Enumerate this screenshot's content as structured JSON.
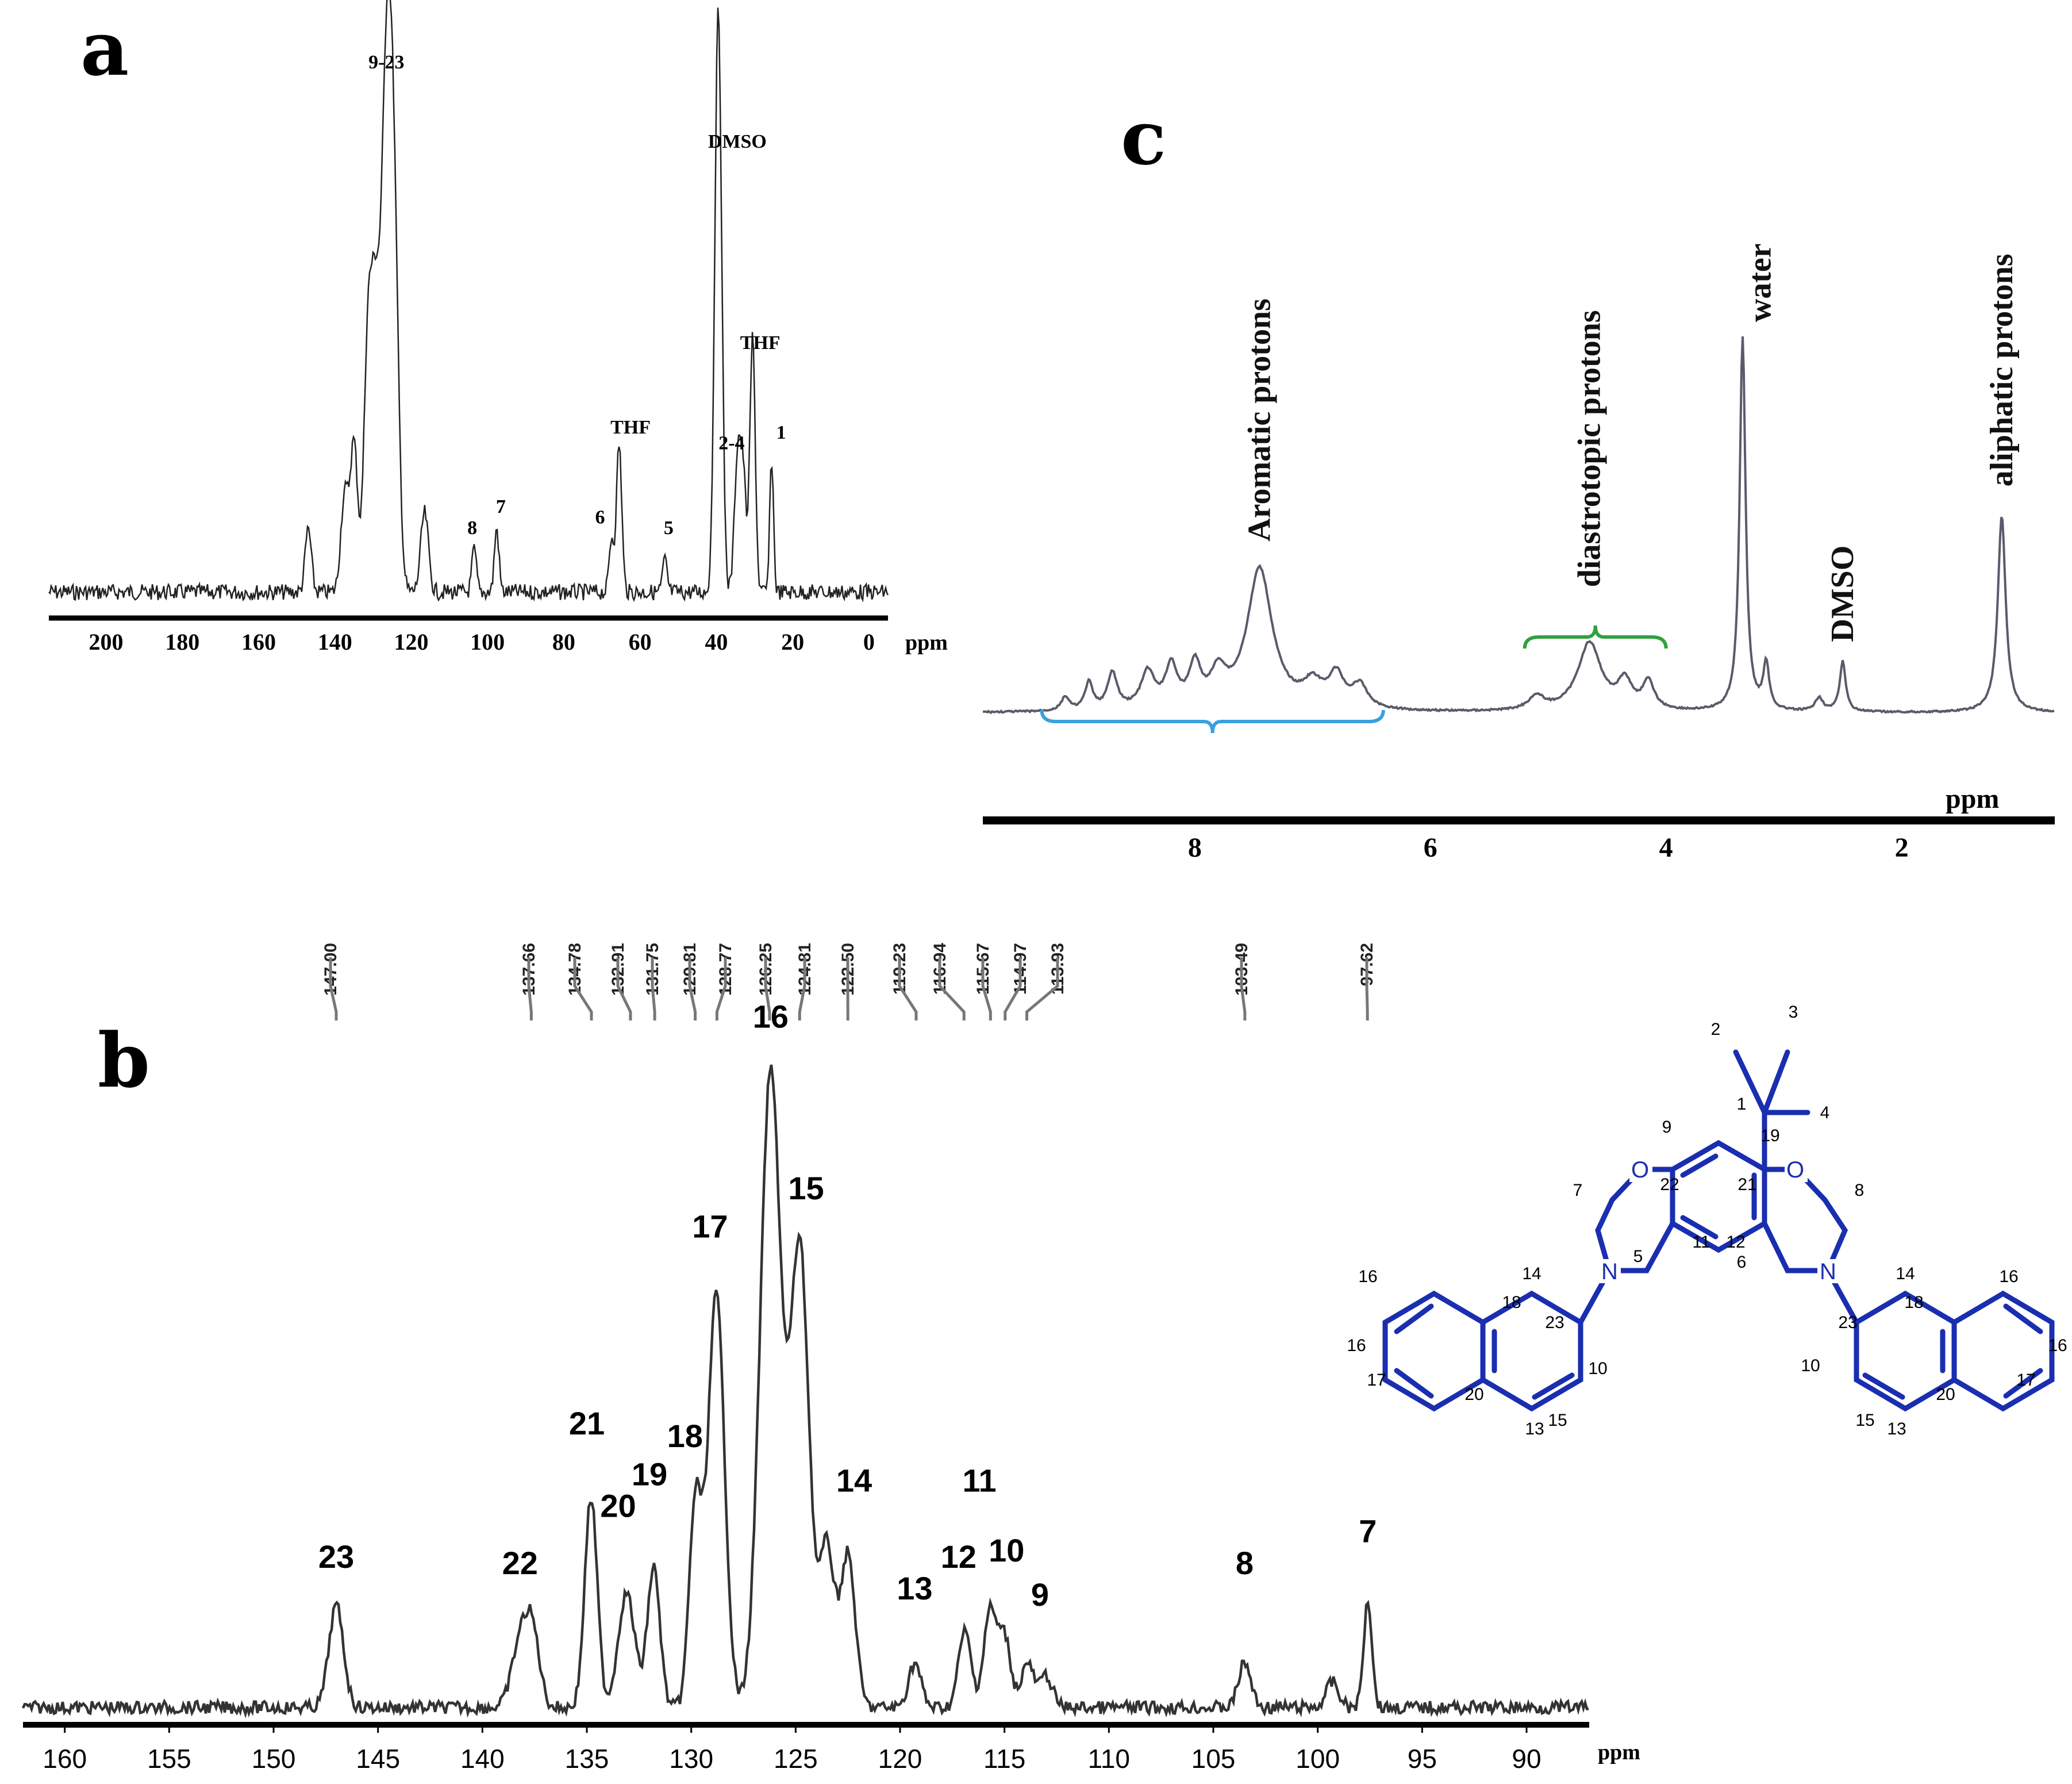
{
  "panels": {
    "a": "a",
    "b": "b",
    "c": "c"
  },
  "chart_data": [
    {
      "id": "a",
      "type": "line",
      "title": "",
      "xlabel": "ppm",
      "ylabel": "",
      "xlim": [
        215,
        -5
      ],
      "x_reversed": true,
      "xticks": [
        200,
        180,
        160,
        140,
        120,
        100,
        80,
        60,
        40,
        20,
        0
      ],
      "grid": false,
      "peaks": [
        {
          "x": 126.5,
          "h": 0.93,
          "w": 1.3
        },
        {
          "x": 124.5,
          "h": 0.62,
          "w": 1.2
        },
        {
          "x": 129.5,
          "h": 0.52,
          "w": 1.2
        },
        {
          "x": 131.5,
          "h": 0.4,
          "w": 1.0
        },
        {
          "x": 135.0,
          "h": 0.28,
          "w": 1.0
        },
        {
          "x": 137.5,
          "h": 0.18,
          "w": 1.0
        },
        {
          "x": 147.0,
          "h": 0.12,
          "w": 0.8
        },
        {
          "x": 116.5,
          "h": 0.15,
          "w": 1.0
        },
        {
          "x": 103.5,
          "h": 0.08,
          "w": 0.6
        },
        {
          "x": 97.6,
          "h": 0.12,
          "w": 0.6
        },
        {
          "x": 67.5,
          "h": 0.1,
          "w": 0.6
        },
        {
          "x": 65.5,
          "h": 0.28,
          "w": 0.7
        },
        {
          "x": 53.5,
          "h": 0.06,
          "w": 0.6
        },
        {
          "x": 39.5,
          "h": 1.1,
          "w": 0.9
        },
        {
          "x": 34.5,
          "h": 0.24,
          "w": 0.8
        },
        {
          "x": 33.0,
          "h": 0.22,
          "w": 0.8
        },
        {
          "x": 30.5,
          "h": 0.48,
          "w": 0.7
        },
        {
          "x": 25.5,
          "h": 0.25,
          "w": 0.5
        }
      ],
      "labels": [
        {
          "text": "9-23",
          "x": 126.5,
          "y": 0.99
        },
        {
          "text": "DMSO",
          "x": 34.5,
          "y": 0.84
        },
        {
          "text": "THF",
          "x": 28.5,
          "y": 0.46
        },
        {
          "text": "THF",
          "x": 62.5,
          "y": 0.3
        },
        {
          "text": "2-4",
          "x": 36.0,
          "y": 0.27
        },
        {
          "text": "1",
          "x": 23.0,
          "y": 0.29
        },
        {
          "text": "8",
          "x": 104.0,
          "y": 0.11
        },
        {
          "text": "7",
          "x": 96.5,
          "y": 0.15
        },
        {
          "text": "6",
          "x": 70.5,
          "y": 0.13
        },
        {
          "text": "5",
          "x": 52.5,
          "y": 0.11
        }
      ]
    },
    {
      "id": "b",
      "type": "line",
      "title": "",
      "xlabel": "ppm",
      "ylabel": "",
      "xlim": [
        162,
        87
      ],
      "x_reversed": true,
      "xticks": [
        160,
        155,
        150,
        145,
        140,
        135,
        130,
        125,
        120,
        115,
        110,
        105,
        100,
        95,
        90
      ],
      "grid": false,
      "shifts": [
        "147.00",
        "137.66",
        "134.78",
        "132.91",
        "131.75",
        "129.81",
        "128.77",
        "126.25",
        "124.81",
        "122.50",
        "119.23",
        "116.94",
        "115.67",
        "114.97",
        "113.93",
        "103.49",
        "97.62"
      ],
      "peaks": [
        {
          "x": 147.0,
          "h": 0.16,
          "w": 0.35
        },
        {
          "x": 138.2,
          "h": 0.1,
          "w": 0.4
        },
        {
          "x": 137.6,
          "h": 0.11,
          "w": 0.35
        },
        {
          "x": 134.8,
          "h": 0.33,
          "w": 0.3
        },
        {
          "x": 133.1,
          "h": 0.18,
          "w": 0.4
        },
        {
          "x": 131.8,
          "h": 0.22,
          "w": 0.3
        },
        {
          "x": 129.8,
          "h": 0.32,
          "w": 0.3
        },
        {
          "x": 128.8,
          "h": 0.65,
          "w": 0.4
        },
        {
          "x": 126.2,
          "h": 1.0,
          "w": 0.5
        },
        {
          "x": 124.8,
          "h": 0.72,
          "w": 0.45
        },
        {
          "x": 123.5,
          "h": 0.25,
          "w": 0.35
        },
        {
          "x": 122.5,
          "h": 0.24,
          "w": 0.35
        },
        {
          "x": 119.3,
          "h": 0.07,
          "w": 0.3
        },
        {
          "x": 116.9,
          "h": 0.12,
          "w": 0.3
        },
        {
          "x": 115.7,
          "h": 0.15,
          "w": 0.3
        },
        {
          "x": 115.0,
          "h": 0.11,
          "w": 0.3
        },
        {
          "x": 113.9,
          "h": 0.07,
          "w": 0.3
        },
        {
          "x": 113.0,
          "h": 0.05,
          "w": 0.3
        },
        {
          "x": 103.5,
          "h": 0.07,
          "w": 0.3
        },
        {
          "x": 99.3,
          "h": 0.04,
          "w": 0.3
        },
        {
          "x": 97.6,
          "h": 0.17,
          "w": 0.2
        }
      ],
      "labels": [
        {
          "text": "23",
          "x": 147.0,
          "y": 0.22
        },
        {
          "text": "22",
          "x": 138.2,
          "y": 0.21
        },
        {
          "text": "21",
          "x": 135.0,
          "y": 0.43
        },
        {
          "text": "20",
          "x": 133.5,
          "y": 0.3
        },
        {
          "text": "19",
          "x": 132.0,
          "y": 0.35
        },
        {
          "text": "18",
          "x": 130.3,
          "y": 0.41
        },
        {
          "text": "17",
          "x": 129.1,
          "y": 0.74
        },
        {
          "text": "16",
          "x": 126.2,
          "y": 1.07
        },
        {
          "text": "15",
          "x": 124.5,
          "y": 0.8
        },
        {
          "text": "14",
          "x": 122.2,
          "y": 0.34
        },
        {
          "text": "13",
          "x": 119.3,
          "y": 0.17
        },
        {
          "text": "12",
          "x": 117.2,
          "y": 0.22
        },
        {
          "text": "11",
          "x": 116.2,
          "y": 0.34
        },
        {
          "text": "10",
          "x": 114.9,
          "y": 0.23
        },
        {
          "text": "9",
          "x": 113.3,
          "y": 0.16
        },
        {
          "text": "8",
          "x": 103.5,
          "y": 0.21
        },
        {
          "text": "7",
          "x": 97.6,
          "y": 0.26
        }
      ]
    },
    {
      "id": "c",
      "type": "line",
      "title": "",
      "xlabel": "ppm",
      "ylabel": "",
      "xlim": [
        9.8,
        0.7
      ],
      "x_reversed": true,
      "xticks": [
        8,
        6,
        4,
        2
      ],
      "grid": false,
      "peaks": [
        {
          "x": 9.1,
          "h": 0.03,
          "w": 0.04
        },
        {
          "x": 8.9,
          "h": 0.06,
          "w": 0.04
        },
        {
          "x": 8.7,
          "h": 0.08,
          "w": 0.05
        },
        {
          "x": 8.4,
          "h": 0.08,
          "w": 0.07
        },
        {
          "x": 8.2,
          "h": 0.09,
          "w": 0.06
        },
        {
          "x": 8.0,
          "h": 0.09,
          "w": 0.06
        },
        {
          "x": 7.8,
          "h": 0.07,
          "w": 0.08
        },
        {
          "x": 7.45,
          "h": 0.31,
          "w": 0.13
        },
        {
          "x": 7.0,
          "h": 0.05,
          "w": 0.1
        },
        {
          "x": 6.8,
          "h": 0.07,
          "w": 0.08
        },
        {
          "x": 6.6,
          "h": 0.05,
          "w": 0.08
        },
        {
          "x": 5.1,
          "h": 0.03,
          "w": 0.08
        },
        {
          "x": 4.65,
          "h": 0.15,
          "w": 0.12
        },
        {
          "x": 4.35,
          "h": 0.06,
          "w": 0.07
        },
        {
          "x": 4.15,
          "h": 0.06,
          "w": 0.06
        },
        {
          "x": 3.35,
          "h": 0.82,
          "w": 0.03
        },
        {
          "x": 3.15,
          "h": 0.1,
          "w": 0.03
        },
        {
          "x": 2.7,
          "h": 0.03,
          "w": 0.04
        },
        {
          "x": 2.5,
          "h": 0.11,
          "w": 0.03
        },
        {
          "x": 1.15,
          "h": 0.43,
          "w": 0.04
        }
      ],
      "labels": [
        {
          "text": "Aromatic protons",
          "x": 7.45,
          "y": 0.35
        },
        {
          "text": "diastrotopic protons",
          "x": 4.65,
          "y": 0.25
        },
        {
          "text": "water",
          "x": 3.2,
          "y": 0.83
        },
        {
          "text": "DMSO",
          "x": 2.5,
          "y": 0.13
        },
        {
          "text": "aliphatic protons",
          "x": 1.15,
          "y": 0.47
        }
      ],
      "braces": [
        {
          "from": 9.3,
          "to": 6.4,
          "color": "#3aa0e0"
        },
        {
          "from": 5.2,
          "to": 4.0,
          "color": "#30a040"
        }
      ]
    }
  ],
  "molecule": {
    "carbon_labels": [
      "1",
      "2",
      "3",
      "4",
      "5",
      "6",
      "7",
      "8",
      "9",
      "10",
      "10",
      "11",
      "12",
      "13",
      "13",
      "14",
      "14",
      "15",
      "15",
      "16",
      "16",
      "16",
      "16",
      "17",
      "17",
      "18",
      "18",
      "19",
      "20",
      "20",
      "21",
      "22",
      "23",
      "23"
    ],
    "atoms": {
      "O": "O",
      "N": "N"
    },
    "bond_color": "#1a2eb0"
  }
}
